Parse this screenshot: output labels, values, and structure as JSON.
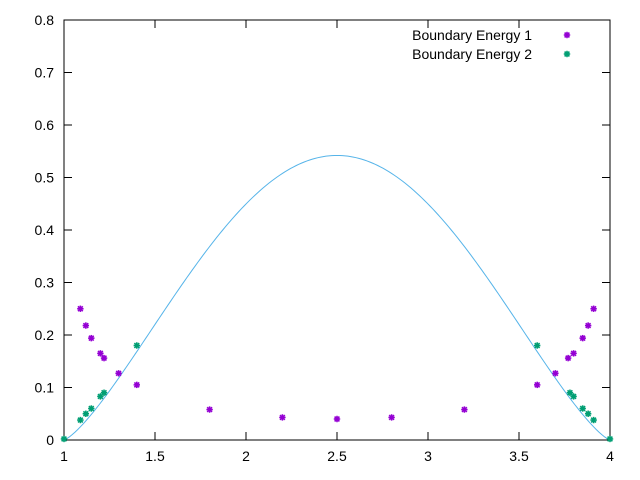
{
  "chart_data": {
    "type": "scatter",
    "title": "",
    "xlabel": "",
    "ylabel": "",
    "xlim": [
      1,
      4
    ],
    "ylim": [
      0,
      0.8
    ],
    "xticks": [
      "1",
      "1.5",
      "2",
      "2.5",
      "3",
      "3.5",
      "4"
    ],
    "yticks": [
      "0",
      "0.1",
      "0.2",
      "0.3",
      "0.4",
      "0.5",
      "0.6",
      "0.7",
      "0.8"
    ],
    "grid": false,
    "legend_position": "top-right",
    "series": [
      {
        "name": "Boundary Energy 1",
        "color": "#9400d3",
        "marker": "cross-point",
        "points": [
          [
            1.09,
            0.25
          ],
          [
            1.12,
            0.218
          ],
          [
            1.15,
            0.194
          ],
          [
            1.2,
            0.165
          ],
          [
            1.22,
            0.156
          ],
          [
            1.3,
            0.127
          ],
          [
            1.4,
            0.105
          ],
          [
            1.8,
            0.058
          ],
          [
            2.2,
            0.043
          ],
          [
            2.5,
            0.04
          ],
          [
            2.8,
            0.043
          ],
          [
            3.2,
            0.058
          ],
          [
            3.6,
            0.105
          ],
          [
            3.7,
            0.127
          ],
          [
            3.77,
            0.156
          ],
          [
            3.8,
            0.165
          ],
          [
            3.85,
            0.194
          ],
          [
            3.88,
            0.218
          ],
          [
            3.91,
            0.25
          ]
        ]
      },
      {
        "name": "Boundary Energy 2",
        "color": "#009e73",
        "marker": "cross-point",
        "points": [
          [
            1.0,
            0.002
          ],
          [
            1.09,
            0.038
          ],
          [
            1.12,
            0.05
          ],
          [
            1.15,
            0.06
          ],
          [
            1.2,
            0.083
          ],
          [
            1.22,
            0.09
          ],
          [
            1.4,
            0.18
          ],
          [
            3.6,
            0.18
          ],
          [
            3.78,
            0.09
          ],
          [
            3.8,
            0.083
          ],
          [
            3.85,
            0.06
          ],
          [
            3.88,
            0.05
          ],
          [
            3.91,
            0.038
          ],
          [
            4.0,
            0.002
          ]
        ]
      },
      {
        "name": "",
        "type": "line",
        "color": "#56b4e9",
        "function": "0.542*sin(pi*(x-1)/3)^1.3",
        "domain": [
          1,
          4
        ]
      }
    ]
  }
}
